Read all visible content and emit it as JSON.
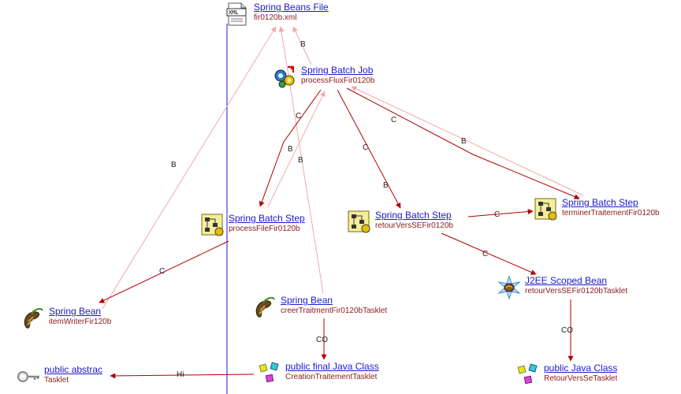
{
  "colors": {
    "strong_edge": "#b00000",
    "weak_edge": "#f4a8a8",
    "divider": "#1a1acc",
    "link": "#1a1acc",
    "name": "#8a1a1a"
  },
  "nodes": {
    "beans_file": {
      "type": "Spring Beans File",
      "name": "fir0120b.xml",
      "icon": "xml-file-icon"
    },
    "batch_job": {
      "type": "Spring Batch Job",
      "name": "processFluxFir0120b",
      "icon": "batch-job-icon"
    },
    "step_process": {
      "type": "Spring Batch Step",
      "name": "processFileFir0120b",
      "icon": "batch-step-icon"
    },
    "step_retour": {
      "type": "Spring Batch Step",
      "name": "retourVersSEFir0120b",
      "icon": "batch-step-icon"
    },
    "step_termine": {
      "type": "Spring Batch Step",
      "name": "terminerTraitementFir0120b",
      "icon": "batch-step-icon"
    },
    "scoped_bean": {
      "type": "J2EE Scoped Bean",
      "name": "retourVersSEFir0120bTasklet",
      "icon": "scoped-bean-icon"
    },
    "bean_writer": {
      "type": "Spring Bean",
      "name": "itemWriterFir120b",
      "icon": "bean-icon"
    },
    "bean_creer": {
      "type": "Spring Bean",
      "name": "creerTraitmentFir0120bTasklet",
      "icon": "bean-icon"
    },
    "class_tasklet": {
      "type": " public abstrac",
      "name": "Tasklet",
      "icon": "key-icon"
    },
    "class_creation": {
      "type": " public final Java Class",
      "name": "CreationTraitementTasklet",
      "icon": "java-class-icon"
    },
    "class_retour": {
      "type": " public Java Class",
      "name": "RetourVersSeTasklet",
      "icon": "java-class-icon"
    }
  },
  "edges": [
    {
      "id": "job-to-file",
      "label": "B",
      "style": "weak"
    },
    {
      "id": "step-process-to-job",
      "label": "B",
      "style": "weak"
    },
    {
      "id": "bean-creer-to-file",
      "label": "B",
      "style": "weak"
    },
    {
      "id": "bean-writer-to-file",
      "label": "B",
      "style": "weak"
    },
    {
      "id": "step-termine-to-job",
      "label": "B",
      "style": "weak"
    },
    {
      "id": "job-to-step-process",
      "label": "B",
      "style": "strong"
    },
    {
      "id": "job-to-step-retour",
      "label": "C",
      "style": "strong"
    },
    {
      "id": "job-to-step-retour-b",
      "label": "B",
      "style": "strong"
    },
    {
      "id": "job-to-step-termine",
      "label": "C",
      "style": "strong"
    },
    {
      "id": "job-c-label",
      "label": "C",
      "style": "strong"
    },
    {
      "id": "step-retour-to-termine",
      "label": "C",
      "style": "strong"
    },
    {
      "id": "step-retour-to-scoped",
      "label": "C",
      "style": "strong"
    },
    {
      "id": "step-process-to-writer",
      "label": "C",
      "style": "strong"
    },
    {
      "id": "bean-creer-to-class",
      "label": "CO",
      "style": "strong"
    },
    {
      "id": "scoped-to-class",
      "label": "CO",
      "style": "strong"
    },
    {
      "id": "class-to-tasklet",
      "label": "Hi",
      "style": "strong"
    }
  ]
}
